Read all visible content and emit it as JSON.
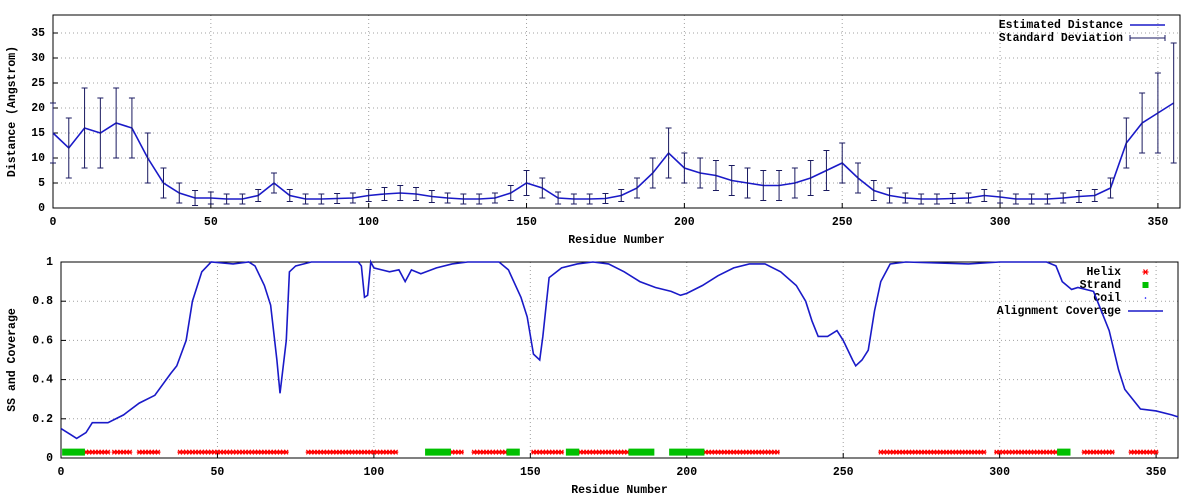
{
  "chart_data": [
    {
      "type": "line",
      "x_label": "Residue Number",
      "y_label": "Distance (Angstrom)",
      "xlim": [
        0,
        357
      ],
      "ylim": [
        0,
        38.6
      ],
      "xticks": [
        0,
        50,
        100,
        150,
        200,
        250,
        300,
        350
      ],
      "yticks": [
        0,
        5,
        10,
        15,
        20,
        25,
        30,
        35
      ],
      "grid": true,
      "legend": "top-right",
      "x": [
        0,
        5,
        10,
        15,
        20,
        25,
        30,
        35,
        40,
        45,
        50,
        55,
        60,
        65,
        70,
        75,
        80,
        85,
        90,
        95,
        100,
        105,
        110,
        115,
        120,
        125,
        130,
        135,
        140,
        145,
        150,
        155,
        160,
        165,
        170,
        175,
        180,
        185,
        190,
        195,
        200,
        205,
        210,
        215,
        220,
        225,
        230,
        235,
        240,
        245,
        250,
        255,
        260,
        265,
        270,
        275,
        280,
        285,
        290,
        295,
        300,
        305,
        310,
        315,
        320,
        325,
        330,
        335,
        340,
        345,
        350,
        355
      ],
      "series": [
        {
          "name": "Estimated Distance",
          "color": "#1a1ac8",
          "style": "line",
          "values": [
            15,
            12,
            16,
            15,
            17,
            16,
            10,
            5,
            3,
            2,
            2,
            1.8,
            1.8,
            2.5,
            5,
            2.5,
            1.8,
            1.8,
            1.9,
            2,
            2.5,
            2.8,
            3,
            2.8,
            2.3,
            2,
            1.8,
            1.8,
            2,
            3,
            5,
            4,
            2,
            1.8,
            1.8,
            1.9,
            2.5,
            4,
            7,
            11,
            8,
            7,
            6.5,
            5.5,
            5,
            4.5,
            4.5,
            5,
            6,
            7.5,
            9,
            6,
            3.5,
            2.5,
            2,
            1.8,
            1.8,
            1.9,
            2,
            2.5,
            2.2,
            1.8,
            1.8,
            1.8,
            2,
            2.3,
            2.5,
            4,
            13,
            17,
            19,
            21
          ]
        },
        {
          "name": "Standard Deviation",
          "color": "#1a1a60",
          "style": "errorbars",
          "values": [
            6,
            6,
            8,
            7,
            7,
            6,
            5,
            3,
            2,
            1.5,
            1.2,
            1,
            1,
            1.2,
            2,
            1.2,
            1,
            1,
            1,
            1,
            1.2,
            1.3,
            1.5,
            1.3,
            1.2,
            1,
            1,
            1,
            1,
            1.5,
            2.5,
            2,
            1.2,
            1,
            1,
            1,
            1.2,
            2,
            3,
            5,
            3,
            3,
            3,
            3,
            3,
            3,
            3,
            3,
            3.5,
            4,
            4,
            3,
            2,
            1.5,
            1,
            1,
            1,
            1,
            1,
            1.2,
            1.2,
            1,
            1,
            1,
            1,
            1.2,
            1.2,
            2,
            5,
            6,
            8,
            12
          ]
        }
      ]
    },
    {
      "type": "line",
      "x_label": "Residue Number",
      "y_label": "SS and Coverage",
      "xlim": [
        0,
        357
      ],
      "ylim": [
        0,
        1
      ],
      "xticks": [
        0,
        50,
        100,
        150,
        200,
        250,
        300,
        350
      ],
      "yticks": [
        0,
        0.2,
        0.4,
        0.6,
        0.8,
        1
      ],
      "grid": true,
      "legend": "top-right",
      "x": [
        0,
        3,
        5,
        8,
        10,
        15,
        20,
        25,
        30,
        35,
        37,
        40,
        42,
        45,
        48,
        55,
        60,
        62,
        65,
        67,
        69,
        70,
        72,
        73,
        75,
        80,
        90,
        95,
        96,
        97,
        98,
        99,
        100,
        105,
        108,
        110,
        112,
        115,
        120,
        125,
        130,
        140,
        143,
        147,
        149,
        151,
        153,
        154,
        156,
        160,
        165,
        170,
        175,
        180,
        185,
        190,
        195,
        198,
        200,
        205,
        210,
        215,
        220,
        225,
        230,
        235,
        238,
        240,
        242,
        245,
        248,
        250,
        253,
        254,
        256,
        258,
        260,
        262,
        265,
        270,
        290,
        300,
        315,
        318,
        320,
        323,
        325,
        330,
        335,
        338,
        340,
        345,
        350,
        355,
        357
      ],
      "series": [
        {
          "name": "Helix",
          "color": "#ff0000",
          "style": "marker",
          "marker": "star",
          "y": 0.03,
          "ranges": [
            [
              7,
              15
            ],
            [
              17,
              22
            ],
            [
              25,
              31
            ],
            [
              38,
              72
            ],
            [
              79,
              107
            ],
            [
              124,
              128
            ],
            [
              132,
              142
            ],
            [
              151,
              160
            ],
            [
              165,
              181
            ],
            [
              205,
              229
            ],
            [
              262,
              295
            ],
            [
              299,
              310
            ],
            [
              311,
              319
            ],
            [
              327,
              336
            ],
            [
              342,
              350
            ]
          ]
        },
        {
          "name": "Strand",
          "color": "#00c000",
          "style": "marker",
          "marker": "square",
          "y": 0.03,
          "ranges": [
            [
              1,
              7
            ],
            [
              117,
              124
            ],
            [
              143,
              146
            ],
            [
              162,
              165
            ],
            [
              182,
              189
            ],
            [
              195,
              205
            ],
            [
              319,
              322
            ]
          ]
        },
        {
          "name": "Coil",
          "color": "#0000ff",
          "style": "marker",
          "marker": "dot"
        },
        {
          "name": "Alignment Coverage",
          "color": "#1a1ac8",
          "style": "line",
          "values": [
            0.15,
            0.12,
            0.1,
            0.13,
            0.18,
            0.18,
            0.22,
            0.28,
            0.32,
            0.43,
            0.47,
            0.6,
            0.8,
            0.95,
            1.0,
            0.99,
            1.0,
            0.98,
            0.88,
            0.78,
            0.5,
            0.33,
            0.6,
            0.95,
            0.98,
            1.0,
            1.0,
            1.0,
            0.98,
            0.82,
            0.83,
            1.0,
            0.97,
            0.95,
            0.96,
            0.9,
            0.96,
            0.94,
            0.97,
            0.99,
            1.0,
            1.0,
            0.96,
            0.82,
            0.72,
            0.53,
            0.5,
            0.62,
            0.92,
            0.97,
            0.99,
            1.0,
            0.99,
            0.95,
            0.9,
            0.87,
            0.85,
            0.83,
            0.84,
            0.88,
            0.93,
            0.97,
            0.99,
            0.99,
            0.95,
            0.88,
            0.8,
            0.7,
            0.62,
            0.62,
            0.65,
            0.6,
            0.5,
            0.47,
            0.5,
            0.55,
            0.75,
            0.9,
            0.99,
            1.0,
            0.99,
            1.0,
            1.0,
            0.98,
            0.9,
            0.86,
            0.87,
            0.85,
            0.65,
            0.45,
            0.35,
            0.25,
            0.24,
            0.22,
            0.21
          ]
        }
      ]
    }
  ]
}
